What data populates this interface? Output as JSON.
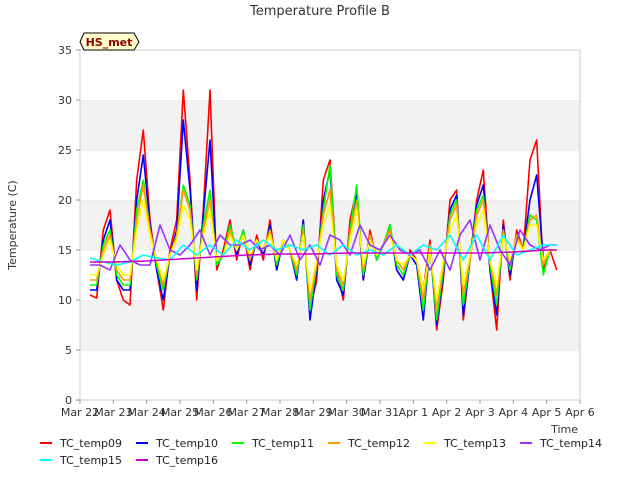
{
  "chart_data": {
    "type": "line",
    "title": "Temperature Profile B",
    "xlabel": "Time",
    "ylabel": "Temperature (C)",
    "ylim": [
      0,
      35
    ],
    "yticks": [
      0,
      5,
      10,
      15,
      20,
      25,
      30,
      35
    ],
    "x_tick_labels": [
      "Mar 22",
      "Mar 23",
      "Mar 24",
      "Mar 25",
      "Mar 26",
      "Mar 27",
      "Mar 28",
      "Mar 29",
      "Mar 30",
      "Mar 31",
      "Apr 1",
      "Apr 2",
      "Apr 3",
      "Apr 4",
      "Apr 5",
      "Apr 6"
    ],
    "x_range_days": [
      0,
      15
    ],
    "grid": "alternating horizontal bands",
    "legend_position": "bottom",
    "badge": "HS_met",
    "series": [
      {
        "name": "TC_temp09",
        "color": "#ff0000",
        "x": [
          0.3,
          0.5,
          0.7,
          0.9,
          1.1,
          1.3,
          1.5,
          1.7,
          1.9,
          2.1,
          2.3,
          2.5,
          2.7,
          2.9,
          3.1,
          3.3,
          3.5,
          3.7,
          3.9,
          4.1,
          4.3,
          4.5,
          4.7,
          4.9,
          5.1,
          5.3,
          5.5,
          5.7,
          5.9,
          6.1,
          6.3,
          6.5,
          6.7,
          6.9,
          7.1,
          7.3,
          7.5,
          7.7,
          7.9,
          8.1,
          8.3,
          8.5,
          8.7,
          8.9,
          9.1,
          9.3,
          9.5,
          9.7,
          9.9,
          10.1,
          10.3,
          10.5,
          10.7,
          10.9,
          11.1,
          11.3,
          11.5,
          11.7,
          11.9,
          12.1,
          12.3,
          12.5,
          12.7,
          12.9,
          13.1,
          13.3,
          13.5,
          13.7,
          13.9,
          14.1,
          14.3
        ],
        "y": [
          10.5,
          10.2,
          17.0,
          19.0,
          12.0,
          10.0,
          9.5,
          22.0,
          27.0,
          18.0,
          13.0,
          9.0,
          15.0,
          18.0,
          31.0,
          22.0,
          10.0,
          19.0,
          31.0,
          13.0,
          15.0,
          18.0,
          14.0,
          17.0,
          13.0,
          16.5,
          14.0,
          18.0,
          13.0,
          16.0,
          15.0,
          12.0,
          18.0,
          9.0,
          12.0,
          22.0,
          24.0,
          13.0,
          10.0,
          18.0,
          21.0,
          12.0,
          17.0,
          14.0,
          15.5,
          17.5,
          13.0,
          12.0,
          15.0,
          14.0,
          11.0,
          16.0,
          7.0,
          12.0,
          20.0,
          21.0,
          8.0,
          14.0,
          20.0,
          23.0,
          13.0,
          7.0,
          18.0,
          12.0,
          17.0,
          15.0,
          24.0,
          26.0,
          13.0,
          15.0,
          13.0
        ]
      },
      {
        "name": "TC_temp10",
        "color": "#0000ff",
        "x": [
          0.3,
          0.5,
          0.7,
          0.9,
          1.1,
          1.3,
          1.5,
          1.7,
          1.9,
          2.1,
          2.3,
          2.5,
          2.7,
          2.9,
          3.1,
          3.3,
          3.5,
          3.7,
          3.9,
          4.1,
          4.3,
          4.5,
          4.7,
          4.9,
          5.1,
          5.3,
          5.5,
          5.7,
          5.9,
          6.1,
          6.3,
          6.5,
          6.7,
          6.9,
          7.1,
          7.3,
          7.5,
          7.7,
          7.9,
          8.1,
          8.3,
          8.5,
          8.7,
          8.9,
          9.1,
          9.3,
          9.5,
          9.7,
          9.9,
          10.1,
          10.3,
          10.5,
          10.7,
          10.9,
          11.1,
          11.3,
          11.5,
          11.7,
          11.9,
          12.1,
          12.3,
          12.5,
          12.7,
          12.9,
          13.1,
          13.3,
          13.5,
          13.7,
          13.9,
          14.1,
          14.3
        ],
        "y": [
          11.0,
          11.0,
          16.0,
          18.0,
          12.0,
          11.0,
          11.0,
          20.0,
          24.5,
          17.5,
          13.0,
          10.0,
          14.5,
          17.0,
          28.0,
          21.0,
          11.0,
          18.5,
          26.0,
          13.5,
          14.5,
          17.5,
          14.5,
          17.0,
          13.5,
          16.0,
          14.5,
          17.5,
          13.0,
          16.0,
          15.0,
          12.0,
          18.0,
          8.0,
          13.0,
          20.0,
          23.0,
          12.0,
          10.5,
          17.0,
          20.5,
          12.0,
          16.5,
          14.0,
          15.5,
          17.5,
          13.0,
          12.0,
          14.5,
          13.5,
          8.0,
          15.5,
          7.5,
          12.5,
          19.0,
          20.5,
          8.5,
          14.0,
          19.5,
          21.5,
          13.0,
          8.5,
          17.5,
          12.5,
          16.5,
          15.0,
          20.0,
          22.5,
          14.0,
          15.0,
          15.0
        ]
      },
      {
        "name": "TC_temp11",
        "color": "#00ff00",
        "x": [
          0.3,
          0.5,
          0.7,
          0.9,
          1.1,
          1.3,
          1.5,
          1.7,
          1.9,
          2.1,
          2.3,
          2.5,
          2.7,
          2.9,
          3.1,
          3.3,
          3.5,
          3.7,
          3.9,
          4.1,
          4.3,
          4.5,
          4.7,
          4.9,
          5.1,
          5.3,
          5.5,
          5.7,
          5.9,
          6.1,
          6.3,
          6.5,
          6.7,
          6.9,
          7.1,
          7.3,
          7.5,
          7.7,
          7.9,
          8.1,
          8.3,
          8.5,
          8.7,
          8.9,
          9.1,
          9.3,
          9.5,
          9.7,
          9.9,
          10.1,
          10.3,
          10.5,
          10.7,
          10.9,
          11.1,
          11.3,
          11.5,
          11.7,
          11.9,
          12.1,
          12.3,
          12.5,
          12.7,
          12.9,
          13.1,
          13.3,
          13.5,
          13.7,
          13.9,
          14.1,
          14.3
        ],
        "y": [
          11.5,
          11.5,
          15.5,
          17.0,
          12.5,
          11.5,
          11.5,
          19.0,
          22.0,
          17.0,
          13.5,
          11.0,
          14.5,
          16.5,
          21.5,
          19.5,
          12.0,
          17.5,
          21.0,
          13.5,
          14.5,
          17.5,
          15.0,
          17.0,
          14.0,
          16.0,
          15.0,
          17.0,
          13.5,
          16.0,
          15.0,
          12.5,
          17.5,
          9.0,
          13.5,
          19.0,
          23.5,
          12.5,
          11.0,
          17.0,
          21.5,
          12.5,
          16.5,
          14.0,
          15.5,
          17.5,
          13.5,
          12.5,
          14.5,
          14.0,
          9.0,
          15.5,
          8.0,
          13.0,
          18.5,
          20.0,
          9.5,
          14.0,
          19.0,
          20.5,
          13.5,
          9.5,
          17.0,
          13.0,
          16.5,
          15.0,
          18.5,
          18.0,
          12.5,
          15.0,
          15.0
        ]
      },
      {
        "name": "TC_temp12",
        "color": "#ff9900",
        "x": [
          0.3,
          0.5,
          0.7,
          0.9,
          1.1,
          1.3,
          1.5,
          1.7,
          1.9,
          2.1,
          2.3,
          2.5,
          2.7,
          2.9,
          3.1,
          3.3,
          3.5,
          3.7,
          3.9,
          4.1,
          4.3,
          4.5,
          4.7,
          4.9,
          5.1,
          5.3,
          5.5,
          5.7,
          5.9,
          6.1,
          6.3,
          6.5,
          6.7,
          6.9,
          7.1,
          7.3,
          7.5,
          7.7,
          7.9,
          8.1,
          8.3,
          8.5,
          8.7,
          8.9,
          9.1,
          9.3,
          9.5,
          9.7,
          9.9,
          10.1,
          10.3,
          10.5,
          10.7,
          10.9,
          11.1,
          11.3,
          11.5,
          11.7,
          11.9,
          12.1,
          12.3,
          12.5,
          12.7,
          12.9,
          13.1,
          13.3,
          13.5,
          13.7,
          13.9,
          14.1,
          14.3
        ],
        "y": [
          12.0,
          12.0,
          15.0,
          16.5,
          13.0,
          12.0,
          12.0,
          18.0,
          21.5,
          17.0,
          14.0,
          11.5,
          14.5,
          16.5,
          21.0,
          19.0,
          12.5,
          17.0,
          20.0,
          14.0,
          14.5,
          17.0,
          15.0,
          16.5,
          14.0,
          16.0,
          15.0,
          17.0,
          14.0,
          16.0,
          15.0,
          13.0,
          17.0,
          10.0,
          13.5,
          18.5,
          21.0,
          13.0,
          11.5,
          16.5,
          20.0,
          13.0,
          16.5,
          14.5,
          15.5,
          17.0,
          14.0,
          13.0,
          14.5,
          14.0,
          10.0,
          15.5,
          9.0,
          13.5,
          18.0,
          19.5,
          10.5,
          14.0,
          18.5,
          20.0,
          14.0,
          10.5,
          17.0,
          13.5,
          16.5,
          15.0,
          18.0,
          18.5,
          13.5,
          15.0,
          15.0
        ]
      },
      {
        "name": "TC_temp13",
        "color": "#ffff00",
        "x": [
          0.3,
          0.5,
          0.7,
          0.9,
          1.1,
          1.3,
          1.5,
          1.7,
          1.9,
          2.1,
          2.3,
          2.5,
          2.7,
          2.9,
          3.1,
          3.3,
          3.5,
          3.7,
          3.9,
          4.1,
          4.3,
          4.5,
          4.7,
          4.9,
          5.1,
          5.3,
          5.5,
          5.7,
          5.9,
          6.1,
          6.3,
          6.5,
          6.7,
          6.9,
          7.1,
          7.3,
          7.5,
          7.7,
          7.9,
          8.1,
          8.3,
          8.5,
          8.7,
          8.9,
          9.1,
          9.3,
          9.5,
          9.7,
          9.9,
          10.1,
          10.3,
          10.5,
          10.7,
          10.9,
          11.1,
          11.3,
          11.5,
          11.7,
          11.9,
          12.1,
          12.3,
          12.5,
          12.7,
          12.9,
          13.1,
          13.3,
          13.5,
          13.7,
          13.9,
          14.1,
          14.3
        ],
        "y": [
          12.5,
          12.5,
          14.5,
          16.0,
          13.5,
          12.5,
          12.5,
          17.0,
          20.0,
          16.5,
          14.0,
          12.0,
          14.5,
          16.0,
          19.5,
          18.0,
          13.0,
          16.5,
          19.0,
          14.0,
          14.5,
          16.5,
          15.0,
          16.5,
          14.5,
          16.0,
          15.0,
          16.5,
          14.0,
          16.0,
          15.0,
          13.5,
          16.5,
          11.0,
          14.0,
          17.5,
          19.5,
          13.5,
          12.0,
          16.0,
          19.0,
          13.5,
          16.0,
          14.5,
          15.5,
          16.5,
          14.0,
          13.5,
          14.5,
          14.0,
          11.0,
          15.0,
          10.0,
          14.0,
          17.0,
          18.5,
          11.5,
          14.5,
          17.5,
          19.0,
          14.0,
          11.5,
          16.5,
          14.0,
          16.0,
          15.0,
          17.5,
          17.5,
          14.0,
          15.0,
          15.0
        ]
      },
      {
        "name": "TC_temp14",
        "color": "#9933ff",
        "x": [
          0.3,
          0.6,
          0.9,
          1.2,
          1.5,
          1.8,
          2.1,
          2.4,
          2.7,
          3.0,
          3.3,
          3.6,
          3.9,
          4.2,
          4.5,
          4.8,
          5.1,
          5.4,
          5.7,
          6.0,
          6.3,
          6.6,
          6.9,
          7.2,
          7.5,
          7.8,
          8.1,
          8.4,
          8.7,
          9.0,
          9.3,
          9.6,
          9.9,
          10.2,
          10.5,
          10.8,
          11.1,
          11.4,
          11.7,
          12.0,
          12.3,
          12.6,
          12.9,
          13.2,
          13.5,
          13.8,
          14.1,
          14.3
        ],
        "y": [
          13.5,
          13.5,
          13.0,
          15.5,
          14.0,
          13.5,
          13.5,
          17.5,
          15.0,
          14.5,
          15.5,
          17.0,
          14.5,
          16.5,
          15.5,
          15.5,
          16.0,
          15.0,
          15.5,
          14.5,
          16.5,
          14.0,
          15.5,
          13.5,
          16.5,
          16.0,
          14.5,
          17.5,
          15.5,
          15.0,
          16.5,
          15.0,
          14.5,
          15.0,
          13.0,
          15.0,
          13.0,
          16.5,
          18.0,
          14.0,
          17.5,
          15.0,
          13.5,
          17.0,
          15.5,
          15.0,
          15.5,
          15.5
        ]
      },
      {
        "name": "TC_temp15",
        "color": "#00ffff",
        "x": [
          0.3,
          0.7,
          1.1,
          1.5,
          1.9,
          2.3,
          2.7,
          3.1,
          3.5,
          3.9,
          4.3,
          4.7,
          5.1,
          5.5,
          5.9,
          6.3,
          6.7,
          7.1,
          7.5,
          7.9,
          8.3,
          8.7,
          9.1,
          9.5,
          9.9,
          10.3,
          10.7,
          11.1,
          11.5,
          11.9,
          12.3,
          12.7,
          13.1,
          13.5,
          13.9,
          14.3
        ],
        "y": [
          14.2,
          13.8,
          13.5,
          13.8,
          14.5,
          14.2,
          14.0,
          15.5,
          14.5,
          15.5,
          14.5,
          16.0,
          15.0,
          16.0,
          15.0,
          15.5,
          15.0,
          15.5,
          14.5,
          15.5,
          14.5,
          15.0,
          14.5,
          15.5,
          14.5,
          15.5,
          15.0,
          16.5,
          14.0,
          16.5,
          14.0,
          16.5,
          14.5,
          15.0,
          15.5,
          15.5
        ]
      },
      {
        "name": "TC_temp16",
        "color": "#cc00cc",
        "x": [
          0.3,
          1.0,
          2.0,
          3.0,
          4.0,
          5.0,
          6.0,
          7.0,
          8.0,
          9.0,
          10.0,
          11.0,
          12.0,
          13.0,
          14.0,
          14.3
        ],
        "y": [
          13.8,
          13.8,
          13.9,
          14.1,
          14.3,
          14.5,
          14.6,
          14.6,
          14.7,
          14.7,
          14.7,
          14.7,
          14.7,
          14.8,
          15.0,
          15.0
        ]
      }
    ]
  }
}
